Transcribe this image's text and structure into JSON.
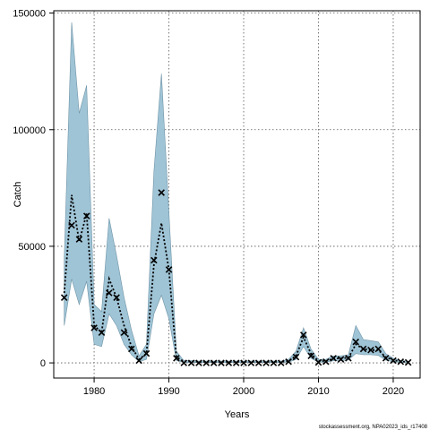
{
  "chart_data": {
    "type": "line",
    "xlabel": "Years",
    "ylabel": "Catch",
    "xlim": [
      1974.6,
      2023.6
    ],
    "ylim": [
      -6500,
      151000
    ],
    "x_ticks": [
      1980,
      1990,
      2000,
      2010,
      2020
    ],
    "x_tick_labels": [
      "1980",
      "1990",
      "2000",
      "2010",
      "2020"
    ],
    "y_ticks": [
      0,
      50000,
      100000,
      150000
    ],
    "y_tick_labels": [
      "0",
      "50000",
      "100000",
      "150000"
    ],
    "grid": true,
    "legend": "none",
    "footnote": "stockassessment.org, NPA02023_ids_r17408",
    "colors": {
      "band_fill": "#9fc4d6",
      "band_stroke": "#6f94a6",
      "line": "#000000",
      "grid": "#555555"
    },
    "series": [
      {
        "role": "estimate",
        "x": [
          1976,
          1977,
          1978,
          1979,
          1980,
          1981,
          1982,
          1983,
          1984,
          1985,
          1986,
          1987,
          1988,
          1989,
          1990,
          1991,
          1992,
          1993,
          1994,
          1995,
          1996,
          1997,
          1998,
          1999,
          2000,
          2001,
          2002,
          2003,
          2004,
          2005,
          2006,
          2007,
          2008,
          2009,
          2010,
          2011,
          2012,
          2013,
          2014,
          2015,
          2016,
          2017,
          2018,
          2019,
          2020,
          2021,
          2022
        ],
        "values": [
          30000,
          72000,
          52000,
          64000,
          16000,
          13000,
          36000,
          28000,
          16000,
          7000,
          1500,
          4000,
          42000,
          60000,
          40000,
          2500,
          600,
          600,
          500,
          500,
          500,
          500,
          500,
          500,
          500,
          500,
          500,
          500,
          500,
          500,
          800,
          3000,
          11000,
          4000,
          800,
          800,
          1800,
          2000,
          2200,
          8000,
          6000,
          5500,
          5500,
          2500,
          1200,
          600,
          400
        ]
      },
      {
        "role": "observed",
        "x": [
          1976,
          1977,
          1978,
          1979,
          1980,
          1981,
          1982,
          1983,
          1984,
          1985,
          1986,
          1987,
          1988,
          1989,
          1990,
          1991,
          1992,
          1993,
          1994,
          1995,
          1996,
          1997,
          1998,
          1999,
          2000,
          2001,
          2002,
          2003,
          2004,
          2005,
          2006,
          2007,
          2008,
          2009,
          2010,
          2011,
          2012,
          2013,
          2014,
          2015,
          2016,
          2017,
          2018,
          2019,
          2020,
          2021,
          2022
        ],
        "values": [
          28000,
          59000,
          53000,
          63000,
          15000,
          13000,
          30000,
          28000,
          13000,
          6000,
          1000,
          4000,
          44000,
          73000,
          40000,
          2000,
          0,
          0,
          0,
          0,
          0,
          0,
          0,
          0,
          0,
          0,
          0,
          0,
          0,
          0,
          500,
          2500,
          12000,
          3000,
          200,
          500,
          2000,
          1500,
          2000,
          9000,
          6000,
          5500,
          6000,
          2000,
          1000,
          500,
          200
        ]
      }
    ],
    "band": {
      "x": [
        1976,
        1977,
        1978,
        1979,
        1980,
        1981,
        1982,
        1983,
        1984,
        1985,
        1986,
        1987,
        1988,
        1989,
        1990,
        1991,
        1992,
        1993,
        1994,
        1995,
        1996,
        1997,
        1998,
        1999,
        2000,
        2001,
        2002,
        2003,
        2004,
        2005,
        2006,
        2007,
        2008,
        2009,
        2010,
        2011,
        2012,
        2013,
        2014,
        2015,
        2016,
        2017,
        2018,
        2019,
        2020,
        2021,
        2022
      ],
      "upper": [
        45000,
        146000,
        107000,
        119000,
        25000,
        22000,
        62000,
        46000,
        28000,
        14000,
        3000,
        8000,
        82000,
        124000,
        65000,
        5000,
        1000,
        1000,
        800,
        800,
        800,
        800,
        800,
        800,
        800,
        800,
        800,
        800,
        800,
        800,
        1500,
        5000,
        15000,
        6000,
        1500,
        1500,
        3000,
        3000,
        3500,
        16000,
        10000,
        9500,
        9000,
        4000,
        2000,
        1000,
        700
      ],
      "lower": [
        16000,
        36000,
        25000,
        35000,
        8000,
        7000,
        21000,
        16000,
        8000,
        3500,
        500,
        1500,
        21000,
        29000,
        19000,
        1000,
        200,
        200,
        200,
        200,
        200,
        200,
        200,
        200,
        200,
        200,
        200,
        200,
        200,
        200,
        300,
        1500,
        7000,
        2000,
        300,
        300,
        900,
        1000,
        1200,
        4000,
        3500,
        3500,
        3200,
        1200,
        500,
        200,
        100
      ]
    }
  }
}
